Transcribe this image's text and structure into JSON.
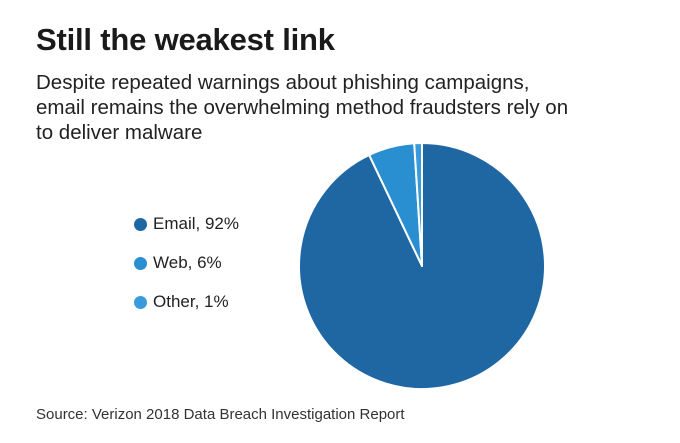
{
  "title": "Still the weakest link",
  "subtitle_lines": [
    "Despite repeated warnings about phishing campaigns,",
    "email remains the overwhelming method fraudsters rely on",
    "to deliver malware"
  ],
  "source": "Source: Verizon 2018 Data Breach Investigation Report",
  "chart_data": {
    "type": "pie",
    "title": "Still the weakest link",
    "slices": [
      {
        "label": "Email",
        "value": 92,
        "display": "Email, 92%",
        "color": "#1f67a3"
      },
      {
        "label": "Web",
        "value": 6,
        "display": "Web, 6%",
        "color": "#2a8fd0"
      },
      {
        "label": "Other",
        "value": 1,
        "display": "Other, 1%",
        "color": "#3a9bdc"
      }
    ],
    "legend_position": "left"
  }
}
